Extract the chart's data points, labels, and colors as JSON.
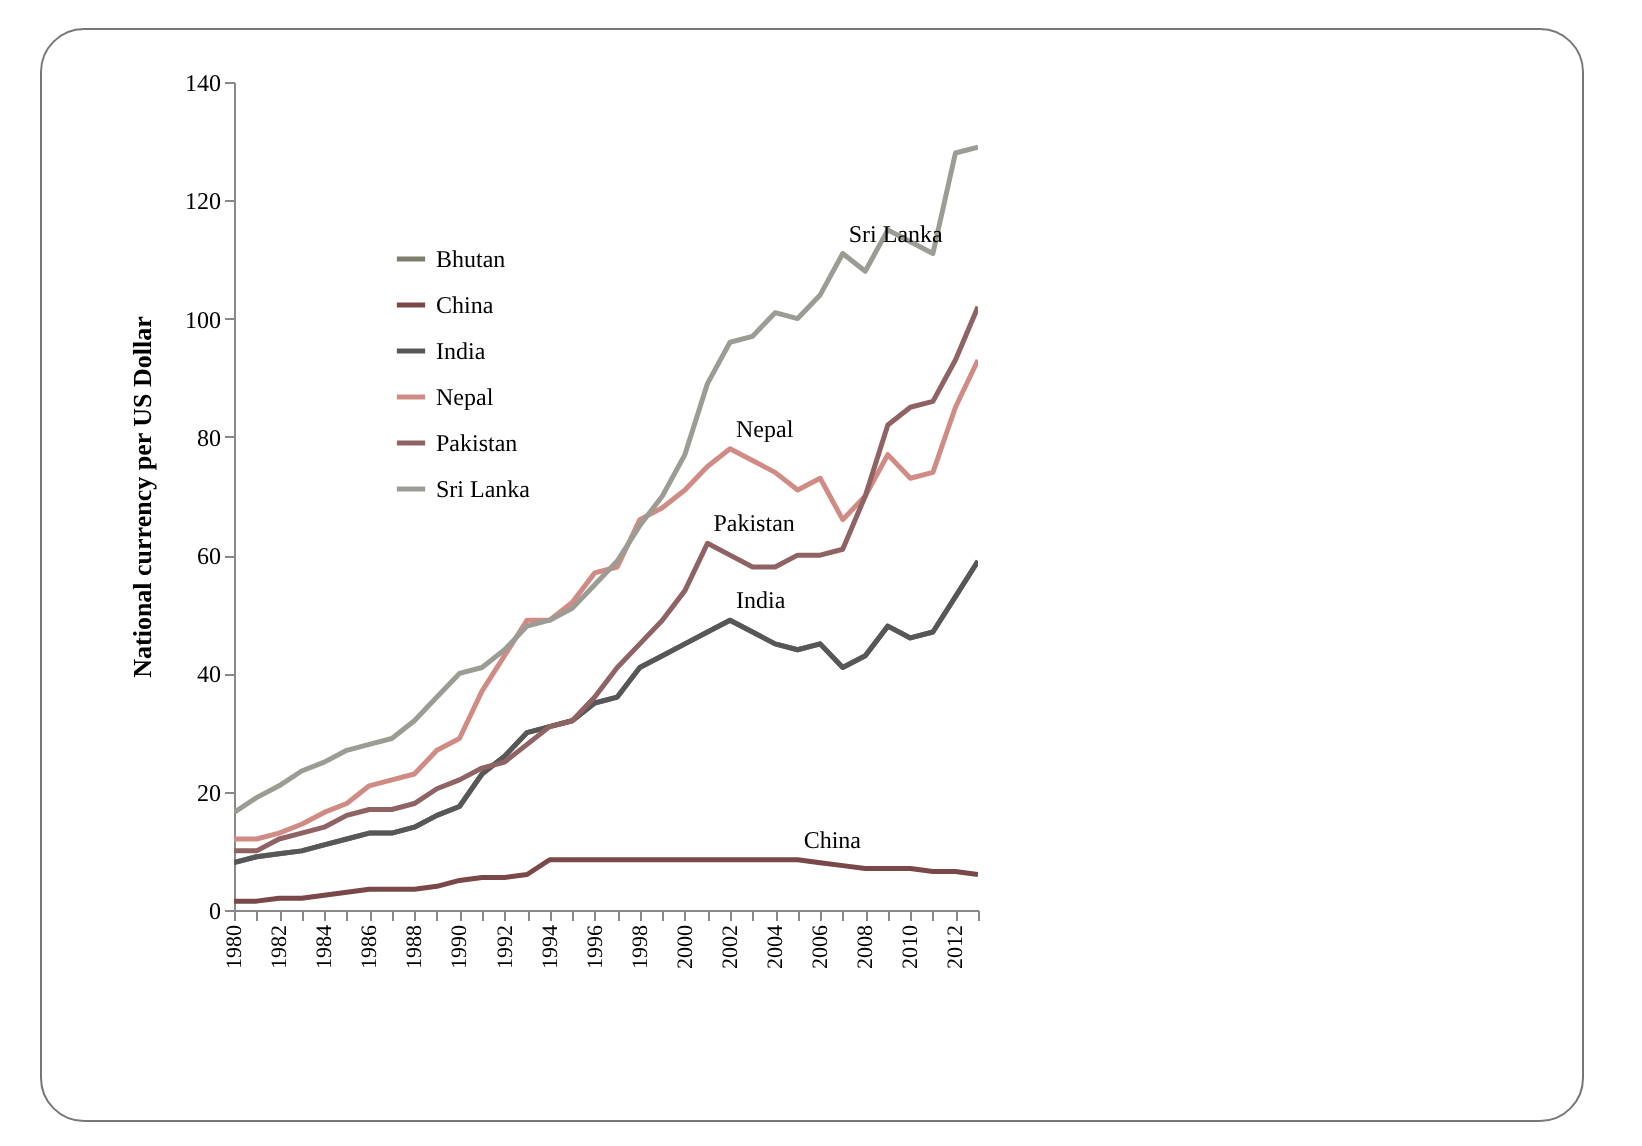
{
  "chart_data": {
    "type": "line",
    "ylabel": "National currency per US Dollar",
    "x": [
      1980,
      1981,
      1982,
      1983,
      1984,
      1985,
      1986,
      1987,
      1988,
      1989,
      1990,
      1991,
      1992,
      1993,
      1994,
      1995,
      1996,
      1997,
      1998,
      1999,
      2000,
      2001,
      2002,
      2003,
      2004,
      2005,
      2006,
      2007,
      2008,
      2009,
      2010,
      2011,
      2012,
      2013
    ],
    "xlim": [
      1980,
      2013
    ],
    "xticks": [
      1980,
      {
        "value": 1981,
        "label": null
      },
      1982,
      {
        "value": 1983,
        "label": null
      },
      1984,
      {
        "value": 1985,
        "label": null
      },
      1986,
      {
        "value": 1987,
        "label": null
      },
      1988,
      {
        "value": 1989,
        "label": null
      },
      1990,
      {
        "value": 1991,
        "label": null
      },
      1992,
      {
        "value": 1993,
        "label": null
      },
      1994,
      {
        "value": 1995,
        "label": null
      },
      1996,
      {
        "value": 1997,
        "label": null
      },
      1998,
      {
        "value": 1999,
        "label": null
      },
      2000,
      {
        "value": 2001,
        "label": null
      },
      2002,
      {
        "value": 2003,
        "label": null
      },
      2004,
      {
        "value": 2005,
        "label": null
      },
      2006,
      {
        "value": 2007,
        "label": null
      },
      2008,
      {
        "value": 2009,
        "label": null
      },
      2010,
      {
        "value": 2011,
        "label": null
      },
      2012,
      {
        "value": 2013,
        "label": null
      }
    ],
    "ylim": [
      0,
      140
    ],
    "yticks": [
      0,
      20,
      40,
      60,
      80,
      100,
      120,
      140
    ],
    "grid": false,
    "legend": "top left",
    "marker": "none",
    "line_style": "solid",
    "series": [
      {
        "name": "Bhutan",
        "color": "#7d7d6c",
        "values": [
          8,
          9,
          9.5,
          10,
          11,
          12,
          13,
          13,
          14,
          16,
          17.5,
          23,
          26,
          30,
          31,
          32,
          35,
          36,
          41,
          43,
          45,
          47,
          49,
          47,
          45,
          44,
          45,
          41,
          43,
          48,
          46,
          47,
          53,
          59
        ]
      },
      {
        "name": "China",
        "color": "#7a4848",
        "values": [
          1.5,
          1.5,
          2,
          2,
          2.5,
          3,
          3.5,
          3.5,
          3.5,
          4,
          5,
          5.5,
          5.5,
          6,
          8.5,
          8.5,
          8.5,
          8.5,
          8.5,
          8.5,
          8.5,
          8.5,
          8.5,
          8.5,
          8.5,
          8.5,
          8,
          7.5,
          7,
          7,
          7,
          6.5,
          6.5,
          6
        ]
      },
      {
        "name": "India",
        "color": "#575757",
        "values": [
          8,
          9,
          9.5,
          10,
          11,
          12,
          13,
          13,
          14,
          16,
          17.5,
          23,
          26,
          30,
          31,
          32,
          35,
          36,
          41,
          43,
          45,
          47,
          49,
          47,
          45,
          44,
          45,
          41,
          43,
          48,
          46,
          47,
          53,
          59
        ]
      },
      {
        "name": "Nepal",
        "color": "#d08c84",
        "values": [
          12,
          12,
          13,
          14.5,
          16.5,
          18,
          21,
          22,
          23,
          27,
          29,
          37,
          43,
          49,
          49,
          52,
          57,
          58,
          66,
          68,
          71,
          75,
          78,
          76,
          74,
          71,
          73,
          66,
          70,
          77,
          73,
          74,
          85,
          93
        ]
      },
      {
        "name": "Pakistan",
        "color": "#8f6264",
        "values": [
          10,
          10,
          12,
          13,
          14,
          16,
          17,
          17,
          18,
          20.5,
          22,
          24,
          25,
          28,
          31,
          32,
          36,
          41,
          45,
          49,
          54,
          62,
          60,
          58,
          58,
          60,
          60,
          61,
          70,
          82,
          85,
          86,
          93,
          102
        ]
      },
      {
        "name": "Sri Lanka",
        "color": "#9c9c94",
        "values": [
          16.5,
          19,
          21,
          23.5,
          25,
          27,
          28,
          29,
          32,
          36,
          40,
          41,
          44,
          48,
          49,
          51,
          55,
          59,
          65,
          70,
          77,
          89,
          96,
          97,
          101,
          100,
          104,
          111,
          108,
          115,
          113,
          111,
          128,
          129
        ]
      }
    ],
    "annotations": [
      {
        "text": "Sri Lanka",
        "x": 2007,
        "y": 111
      },
      {
        "text": "Nepal",
        "x": 2002,
        "y": 78
      },
      {
        "text": "Pakistan",
        "x": 2001,
        "y": 62
      },
      {
        "text": "India",
        "x": 2002,
        "y": 49
      },
      {
        "text": "China",
        "x": 2005,
        "y": 8.5
      }
    ]
  }
}
